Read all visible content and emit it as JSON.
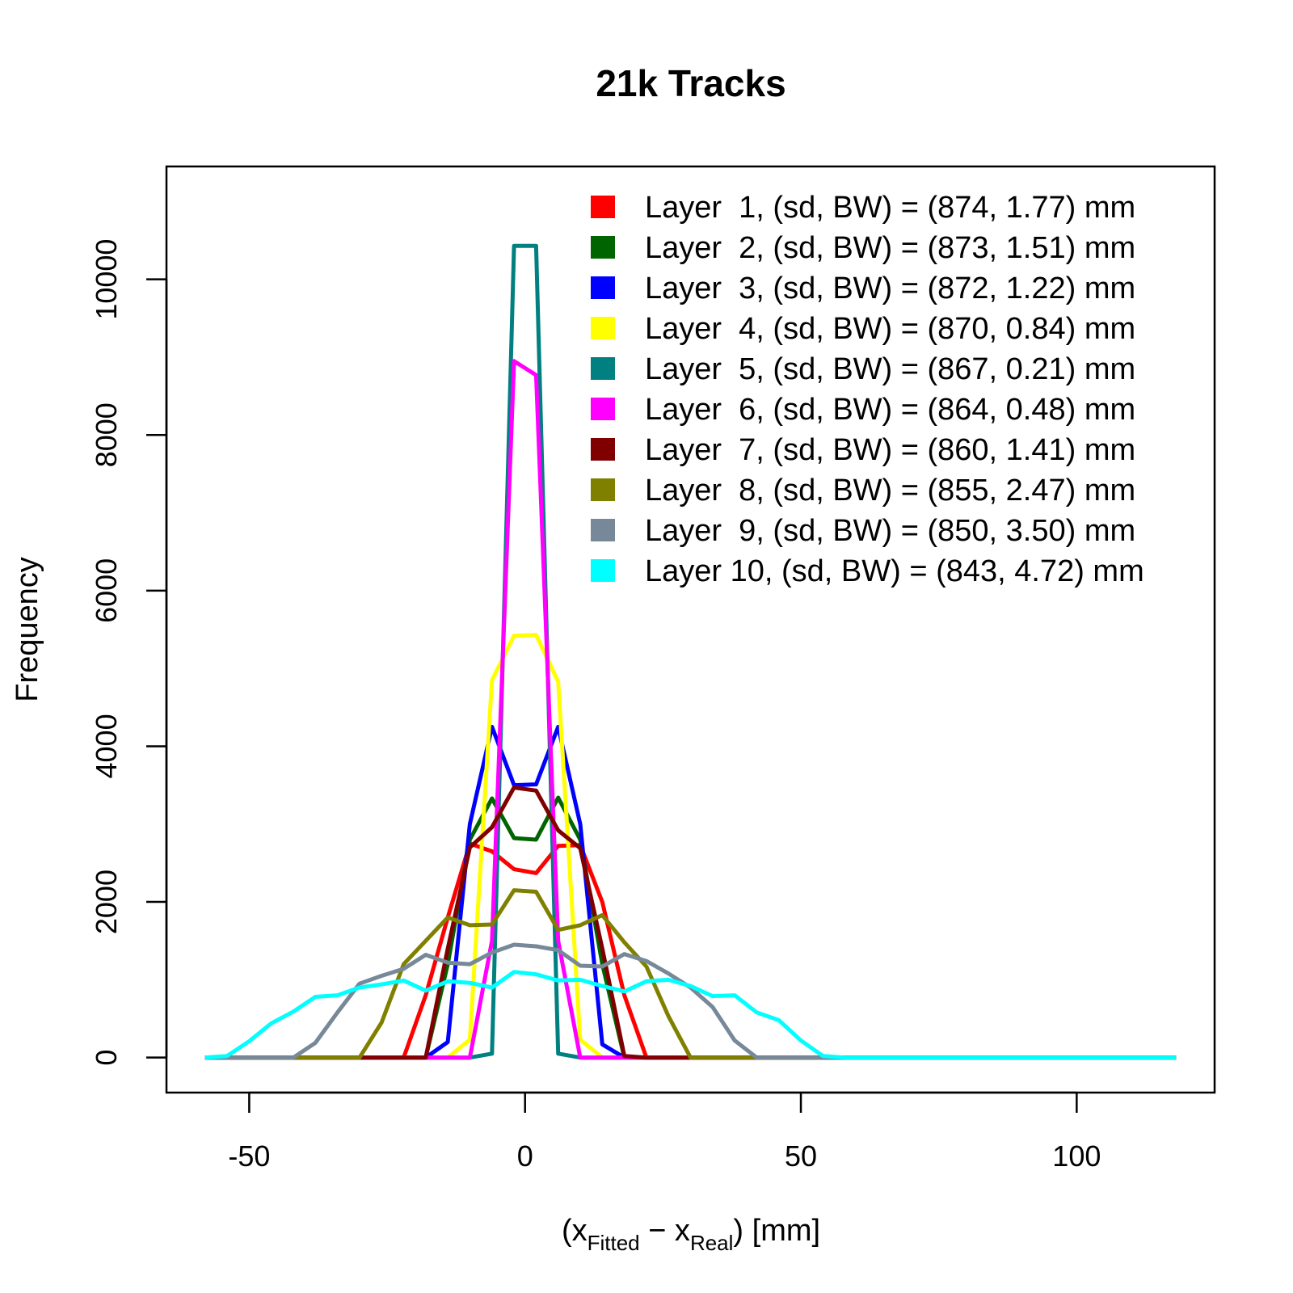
{
  "chart_data": {
    "type": "line",
    "title": "21k Tracks",
    "ylabel": "Frequency",
    "xlabel": {
      "open": "(x",
      "sub1": "Fitted",
      "minus": " − x",
      "sub2": "Real",
      "close": ")  [mm]"
    },
    "xlim": [
      -65,
      125
    ],
    "ylim": [
      -450,
      11450
    ],
    "xticks": [
      -50,
      0,
      50,
      100
    ],
    "xtick_labels": [
      "-50",
      "0",
      "50",
      "100"
    ],
    "yticks": [
      0,
      2000,
      4000,
      6000,
      8000,
      10000
    ],
    "ytick_labels": [
      "0",
      "2000",
      "4000",
      "6000",
      "8000",
      "10000"
    ],
    "grid": false,
    "legend_position": "top-right",
    "series": [
      {
        "name": "Layer  1, (sd, BW) = (874, 1.77) mm",
        "color": "#FF0000",
        "x": [
          -58,
          -22,
          -18,
          -14,
          -10,
          -6,
          -2,
          2,
          6,
          10,
          14,
          18,
          22,
          26,
          118
        ],
        "y": [
          0,
          0,
          800,
          1800,
          2750,
          2650,
          2420,
          2370,
          2720,
          2730,
          2000,
          800,
          0,
          0,
          0
        ]
      },
      {
        "name": "Layer  2, (sd, BW) = (873, 1.51) mm",
        "color": "#006400",
        "x": [
          -58,
          -18,
          -14,
          -10,
          -6,
          -2,
          2,
          6,
          10,
          14,
          18,
          118
        ],
        "y": [
          0,
          0,
          1200,
          2800,
          3330,
          2820,
          2800,
          3340,
          2800,
          1200,
          0,
          0
        ]
      },
      {
        "name": "Layer  3, (sd, BW) = (872, 1.22) mm",
        "color": "#0000FF",
        "x": [
          -58,
          -18,
          -14,
          -10,
          -6,
          -2,
          2,
          6,
          10,
          14,
          18,
          118
        ],
        "y": [
          0,
          0,
          200,
          3000,
          4250,
          3500,
          3510,
          4250,
          3000,
          170,
          0,
          0
        ]
      },
      {
        "name": "Layer  4, (sd, BW) = (870, 0.84) mm",
        "color": "#FFFF00",
        "x": [
          -58,
          -14,
          -10,
          -6,
          -2,
          2,
          6,
          10,
          14,
          118
        ],
        "y": [
          0,
          0,
          230,
          4850,
          5420,
          5430,
          4830,
          230,
          0,
          0
        ]
      },
      {
        "name": "Layer  5, (sd, BW) = (867, 0.21) mm",
        "color": "#008080",
        "x": [
          -58,
          -10,
          -6,
          -2,
          2,
          6,
          10,
          118
        ],
        "y": [
          0,
          0,
          50,
          10430,
          10430,
          50,
          0,
          0
        ]
      },
      {
        "name": "Layer  6, (sd, BW) = (864, 0.48) mm",
        "color": "#FF00FF",
        "x": [
          -58,
          -10,
          -6,
          -2,
          2,
          6,
          10,
          118
        ],
        "y": [
          0,
          0,
          1500,
          8950,
          8770,
          1500,
          0,
          0
        ]
      },
      {
        "name": "Layer  7, (sd, BW) = (860, 1.41) mm",
        "color": "#800000",
        "x": [
          -58,
          -18,
          -14,
          -10,
          -6,
          -2,
          2,
          6,
          10,
          14,
          18,
          22,
          118
        ],
        "y": [
          0,
          0,
          1400,
          2700,
          2960,
          3470,
          3430,
          2920,
          2690,
          1400,
          20,
          0,
          0
        ]
      },
      {
        "name": "Layer  8, (sd, BW) = (855, 2.47) mm",
        "color": "#808000",
        "x": [
          -58,
          -30,
          -26,
          -22,
          -18,
          -14,
          -10,
          -6,
          -2,
          2,
          6,
          10,
          14,
          18,
          22,
          26,
          30,
          118
        ],
        "y": [
          0,
          0,
          450,
          1200,
          1500,
          1800,
          1700,
          1710,
          2150,
          2130,
          1640,
          1700,
          1830,
          1480,
          1170,
          530,
          0,
          0
        ]
      },
      {
        "name": "Layer  9, (sd, BW) = (850, 3.50) mm",
        "color": "#778899",
        "x": [
          -58,
          -42,
          -38,
          -34,
          -30,
          -26,
          -22,
          -18,
          -14,
          -10,
          -6,
          -2,
          2,
          6,
          10,
          14,
          18,
          22,
          26,
          30,
          34,
          38,
          42,
          118
        ],
        "y": [
          0,
          0,
          190,
          580,
          950,
          1050,
          1140,
          1320,
          1220,
          1200,
          1350,
          1450,
          1430,
          1380,
          1180,
          1170,
          1330,
          1240,
          1080,
          900,
          650,
          220,
          0,
          0
        ]
      },
      {
        "name": "Layer 10, (sd, BW) = (843, 4.72) mm",
        "color": "#00FFFF",
        "x": [
          -58,
          -54,
          -50,
          -46,
          -42,
          -38,
          -34,
          -30,
          -26,
          -22,
          -18,
          -14,
          -10,
          -6,
          -2,
          2,
          6,
          10,
          14,
          18,
          22,
          26,
          30,
          34,
          38,
          42,
          46,
          50,
          54,
          58,
          118
        ],
        "y": [
          0,
          20,
          210,
          440,
          590,
          780,
          800,
          900,
          940,
          990,
          860,
          980,
          960,
          900,
          1100,
          1070,
          990,
          1000,
          920,
          850,
          980,
          1000,
          920,
          790,
          800,
          580,
          480,
          220,
          20,
          0,
          0
        ]
      }
    ]
  }
}
